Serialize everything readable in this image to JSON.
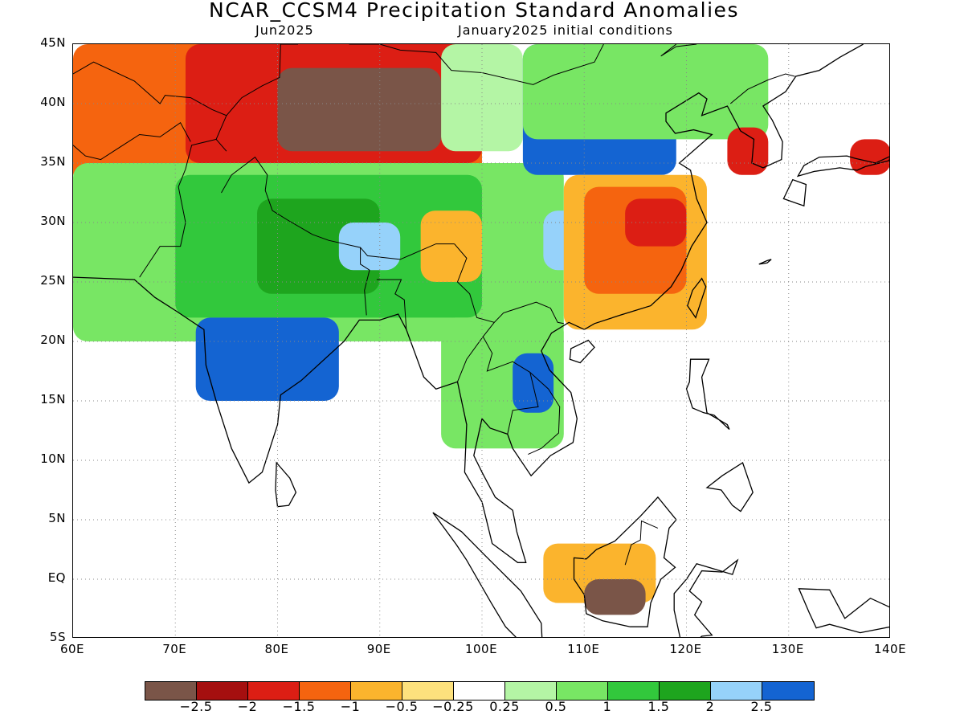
{
  "title": "NCAR_CCSM4 Precipitation Standard Anomalies",
  "subtitle_left": "Jun2025",
  "subtitle_right": "January2025 initial conditions",
  "map": {
    "lon_range": [
      60,
      140
    ],
    "lat_range": [
      -5,
      45
    ],
    "lat_ticks": [
      {
        "value": 45,
        "label": "45N"
      },
      {
        "value": 40,
        "label": "40N"
      },
      {
        "value": 35,
        "label": "35N"
      },
      {
        "value": 30,
        "label": "30N"
      },
      {
        "value": 25,
        "label": "25N"
      },
      {
        "value": 20,
        "label": "20N"
      },
      {
        "value": 15,
        "label": "15N"
      },
      {
        "value": 10,
        "label": "10N"
      },
      {
        "value": 5,
        "label": "5N"
      },
      {
        "value": 0,
        "label": "EQ"
      },
      {
        "value": -5,
        "label": "5S"
      }
    ],
    "lon_ticks": [
      {
        "value": 60,
        "label": "60E"
      },
      {
        "value": 70,
        "label": "70E"
      },
      {
        "value": 80,
        "label": "80E"
      },
      {
        "value": 90,
        "label": "90E"
      },
      {
        "value": 100,
        "label": "100E"
      },
      {
        "value": 110,
        "label": "110E"
      },
      {
        "value": 120,
        "label": "120E"
      },
      {
        "value": 130,
        "label": "130E"
      },
      {
        "value": 140,
        "label": "140E"
      }
    ],
    "grid": "dotted"
  },
  "colorbar": {
    "colors": [
      "#7a5548",
      "#a50f0f",
      "#dc1e14",
      "#f5640f",
      "#fbb42d",
      "#fde17d",
      "#ffffff",
      "#b4f5a5",
      "#78e664",
      "#32c83c",
      "#1ea51e",
      "#96d2fa",
      "#1464d2"
    ],
    "labels": [
      "−2.5",
      "−2",
      "−1.5",
      "−1",
      "−0.5",
      "−0.25",
      "0.25",
      "0.5",
      "1",
      "1.5",
      "2",
      "2.5"
    ]
  },
  "regions": [
    {
      "lon": [
        60,
        100
      ],
      "lat": [
        33,
        45
      ],
      "value": -1.2
    },
    {
      "lon": [
        71,
        100
      ],
      "lat": [
        35,
        45
      ],
      "value": -1.8
    },
    {
      "lon": [
        80,
        96
      ],
      "lat": [
        36,
        43
      ],
      "value": -2.6
    },
    {
      "lon": [
        96,
        104
      ],
      "lat": [
        36,
        45
      ],
      "value": 0.4
    },
    {
      "lon": [
        60,
        108
      ],
      "lat": [
        20,
        35
      ],
      "value": 0.8
    },
    {
      "lon": [
        70,
        100
      ],
      "lat": [
        22,
        34
      ],
      "value": 1.3
    },
    {
      "lon": [
        78,
        90
      ],
      "lat": [
        24,
        32
      ],
      "value": 1.8
    },
    {
      "lon": [
        72,
        86
      ],
      "lat": [
        15,
        22
      ],
      "value": 2.6
    },
    {
      "lon": [
        86,
        92
      ],
      "lat": [
        26,
        30
      ],
      "value": 2.3
    },
    {
      "lon": [
        94,
        100
      ],
      "lat": [
        25,
        31
      ],
      "value": -0.8
    },
    {
      "lon": [
        104,
        119
      ],
      "lat": [
        34,
        45
      ],
      "value": 2.6
    },
    {
      "lon": [
        106,
        112
      ],
      "lat": [
        26,
        31
      ],
      "value": 2.4
    },
    {
      "lon": [
        104,
        128
      ],
      "lat": [
        37,
        45
      ],
      "value": 0.9
    },
    {
      "lon": [
        108,
        122
      ],
      "lat": [
        21,
        34
      ],
      "value": -0.8
    },
    {
      "lon": [
        110,
        120
      ],
      "lat": [
        24,
        33
      ],
      "value": -1.3
    },
    {
      "lon": [
        114,
        120
      ],
      "lat": [
        28,
        32
      ],
      "value": -1.7
    },
    {
      "lon": [
        96,
        108
      ],
      "lat": [
        11,
        22
      ],
      "value": 0.9
    },
    {
      "lon": [
        103,
        107
      ],
      "lat": [
        14,
        19
      ],
      "value": 2.6
    },
    {
      "lon": [
        106,
        117
      ],
      "lat": [
        -2,
        3
      ],
      "value": -1.0
    },
    {
      "lon": [
        110,
        116
      ],
      "lat": [
        -3,
        0
      ],
      "value": -2.7
    },
    {
      "lon": [
        124,
        128
      ],
      "lat": [
        34,
        38
      ],
      "value": -1.6
    },
    {
      "lon": [
        136,
        140
      ],
      "lat": [
        34,
        37
      ],
      "value": -1.6
    }
  ]
}
